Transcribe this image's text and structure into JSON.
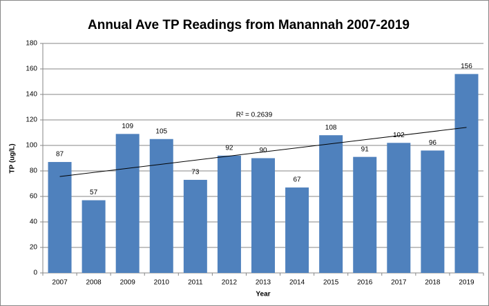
{
  "chart_data": {
    "type": "bar",
    "title": "Annual Ave TP Readings from Manannah 2007-2019",
    "x_label": "Year",
    "y_label": "TP (ug/L)",
    "categories": [
      "2007",
      "2008",
      "2009",
      "2010",
      "2011",
      "2012",
      "2013",
      "2014",
      "2015",
      "2016",
      "2017",
      "2018",
      "2019"
    ],
    "values": [
      87,
      57,
      109,
      105,
      73,
      92,
      90,
      67,
      108,
      91,
      102,
      96,
      156
    ],
    "color": "#4f81bd",
    "ylim": [
      0,
      180
    ],
    "yticks": [
      0,
      20,
      40,
      60,
      80,
      100,
      120,
      140,
      160,
      180
    ],
    "grid": true,
    "trendline": {
      "start": 75.6,
      "end": 114.1,
      "label": "R² = 0.2639"
    }
  }
}
